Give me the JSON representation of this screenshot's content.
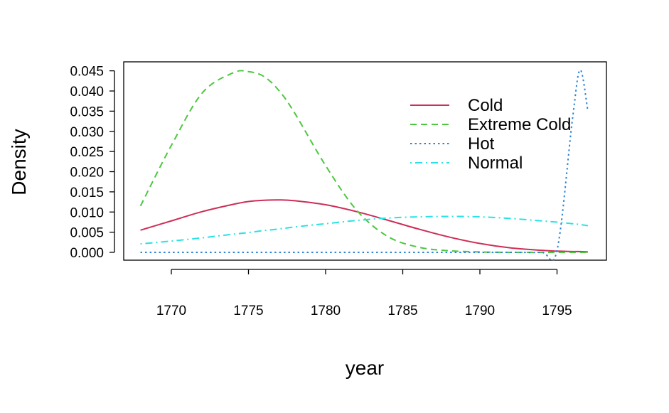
{
  "chart_data": {
    "type": "line",
    "title": "",
    "xlabel": "year",
    "ylabel": "Density",
    "xlim": [
      1768,
      1797
    ],
    "ylim": [
      0,
      0.045
    ],
    "x_ticks": [
      1770,
      1775,
      1780,
      1785,
      1790,
      1795
    ],
    "y_ticks": [
      0.0,
      0.005,
      0.01,
      0.015,
      0.02,
      0.025,
      0.03,
      0.035,
      0.04,
      0.045
    ],
    "x_tick_labels": [
      "1770",
      "1775",
      "1780",
      "1785",
      "1790",
      "1795"
    ],
    "y_tick_labels": [
      "0.000",
      "0.005",
      "0.010",
      "0.015",
      "0.020",
      "0.025",
      "0.030",
      "0.035",
      "0.040",
      "0.045"
    ],
    "grid": false,
    "legend_position": "top-right",
    "x": [
      1768,
      1770,
      1772,
      1774,
      1775,
      1776,
      1777,
      1778,
      1780,
      1782,
      1784,
      1786,
      1788,
      1790,
      1792,
      1794,
      1795,
      1796,
      1796.5,
      1797
    ],
    "series": [
      {
        "name": "Cold",
        "color": "#CD2E57",
        "dash": "solid",
        "values": [
          0.0055,
          0.0078,
          0.0101,
          0.0119,
          0.0126,
          0.0129,
          0.013,
          0.0128,
          0.0118,
          0.0101,
          0.008,
          0.0058,
          0.0038,
          0.0022,
          0.0011,
          0.0005,
          0.0003,
          0.0002,
          0.0002,
          0.0001
        ]
      },
      {
        "name": "Extreme Cold",
        "color": "#4DC73F",
        "dash": "dashed",
        "values": [
          0.0115,
          0.0265,
          0.0395,
          0.0445,
          0.0448,
          0.0436,
          0.04,
          0.0345,
          0.0215,
          0.0105,
          0.004,
          0.0013,
          0.0004,
          0.0001,
          0.0,
          0.0,
          0.0,
          0.0,
          0.0,
          0.0
        ]
      },
      {
        "name": "Hot",
        "color": "#2C84D6",
        "dash": "dotted",
        "values": [
          0.0,
          0.0,
          0.0,
          0.0,
          0.0,
          0.0,
          0.0,
          0.0,
          0.0,
          0.0,
          0.0,
          0.0,
          0.0,
          0.0,
          0.0,
          0.0,
          0.0005,
          0.033,
          0.0452,
          0.035
        ]
      },
      {
        "name": "Normal",
        "color": "#28E2E5",
        "dash": "dotdash",
        "values": [
          0.0021,
          0.0028,
          0.0036,
          0.0045,
          0.0049,
          0.0054,
          0.0058,
          0.0063,
          0.0071,
          0.0079,
          0.0085,
          0.0088,
          0.0089,
          0.0088,
          0.0084,
          0.0078,
          0.0075,
          0.0071,
          0.0069,
          0.0066
        ]
      }
    ]
  }
}
